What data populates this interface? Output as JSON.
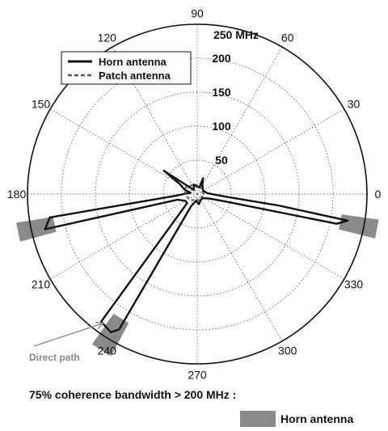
{
  "chart_data": {
    "type": "polar",
    "rlim": [
      0,
      250
    ],
    "r_ticks": [
      50,
      100,
      150,
      200,
      250
    ],
    "r_tick_labels": [
      "50",
      "100",
      "150",
      "200",
      "250 MHz"
    ],
    "theta_ticks": [
      0,
      30,
      60,
      90,
      120,
      150,
      180,
      210,
      240,
      270,
      300,
      330
    ],
    "theta_tick_labels": [
      "0",
      "30",
      "60",
      "90",
      "120",
      "150",
      "180",
      "210",
      "240",
      "270",
      "300",
      "330"
    ],
    "grid": true,
    "legend": {
      "placement": "top-left",
      "entries": [
        "Horn antenna",
        "Patch antenna"
      ]
    },
    "series": [
      {
        "name": "Horn antenna",
        "style": "solid",
        "color": "#111111",
        "points": [
          [
            350,
            225
          ],
          [
            352,
            120
          ],
          [
            355,
            40
          ],
          [
            5,
            15
          ],
          [
            30,
            10
          ],
          [
            60,
            15
          ],
          [
            70,
            25
          ],
          [
            72,
            10
          ],
          [
            90,
            12
          ],
          [
            110,
            15
          ],
          [
            130,
            8
          ],
          [
            145,
            60
          ],
          [
            150,
            30
          ],
          [
            160,
            20
          ],
          [
            170,
            10
          ],
          [
            176,
            15
          ],
          [
            184,
            30
          ],
          [
            189,
            220
          ],
          [
            193,
            230
          ],
          [
            196,
            30
          ],
          [
            210,
            20
          ],
          [
            222,
            20
          ],
          [
            233,
            235
          ],
          [
            238,
            240
          ],
          [
            240,
            230
          ],
          [
            243,
            20
          ],
          [
            260,
            10
          ],
          [
            280,
            15
          ],
          [
            300,
            10
          ],
          [
            320,
            10
          ],
          [
            330,
            12
          ],
          [
            340,
            20
          ],
          [
            345,
            40
          ],
          [
            348,
            210
          ]
        ]
      },
      {
        "name": "Patch antenna",
        "style": "dashed",
        "color": "#555555",
        "points": [
          [
            0,
            10
          ],
          [
            30,
            8
          ],
          [
            60,
            12
          ],
          [
            90,
            10
          ],
          [
            120,
            15
          ],
          [
            150,
            20
          ],
          [
            180,
            18
          ],
          [
            200,
            15
          ],
          [
            230,
            12
          ],
          [
            260,
            8
          ],
          [
            290,
            10
          ],
          [
            320,
            8
          ],
          [
            350,
            10
          ]
        ]
      }
    ],
    "shaded_sectors": [
      {
        "theta_from": 346,
        "theta_to": 352,
        "r_from": 215,
        "r_to": 270
      },
      {
        "theta_from": 189,
        "theta_to": 195,
        "r_from": 215,
        "r_to": 270
      },
      {
        "theta_from": 235,
        "theta_to": 242,
        "r_from": 215,
        "r_to": 270
      }
    ],
    "annotations": [
      {
        "text": "Direct path",
        "arrow_to_theta": 234,
        "arrow_to_r": 235
      }
    ]
  },
  "caption": {
    "text": "75% coherence bandwidth > 200 MHz :",
    "shade_label": "Horn antenna",
    "shade_color": "#8a8a8a"
  }
}
